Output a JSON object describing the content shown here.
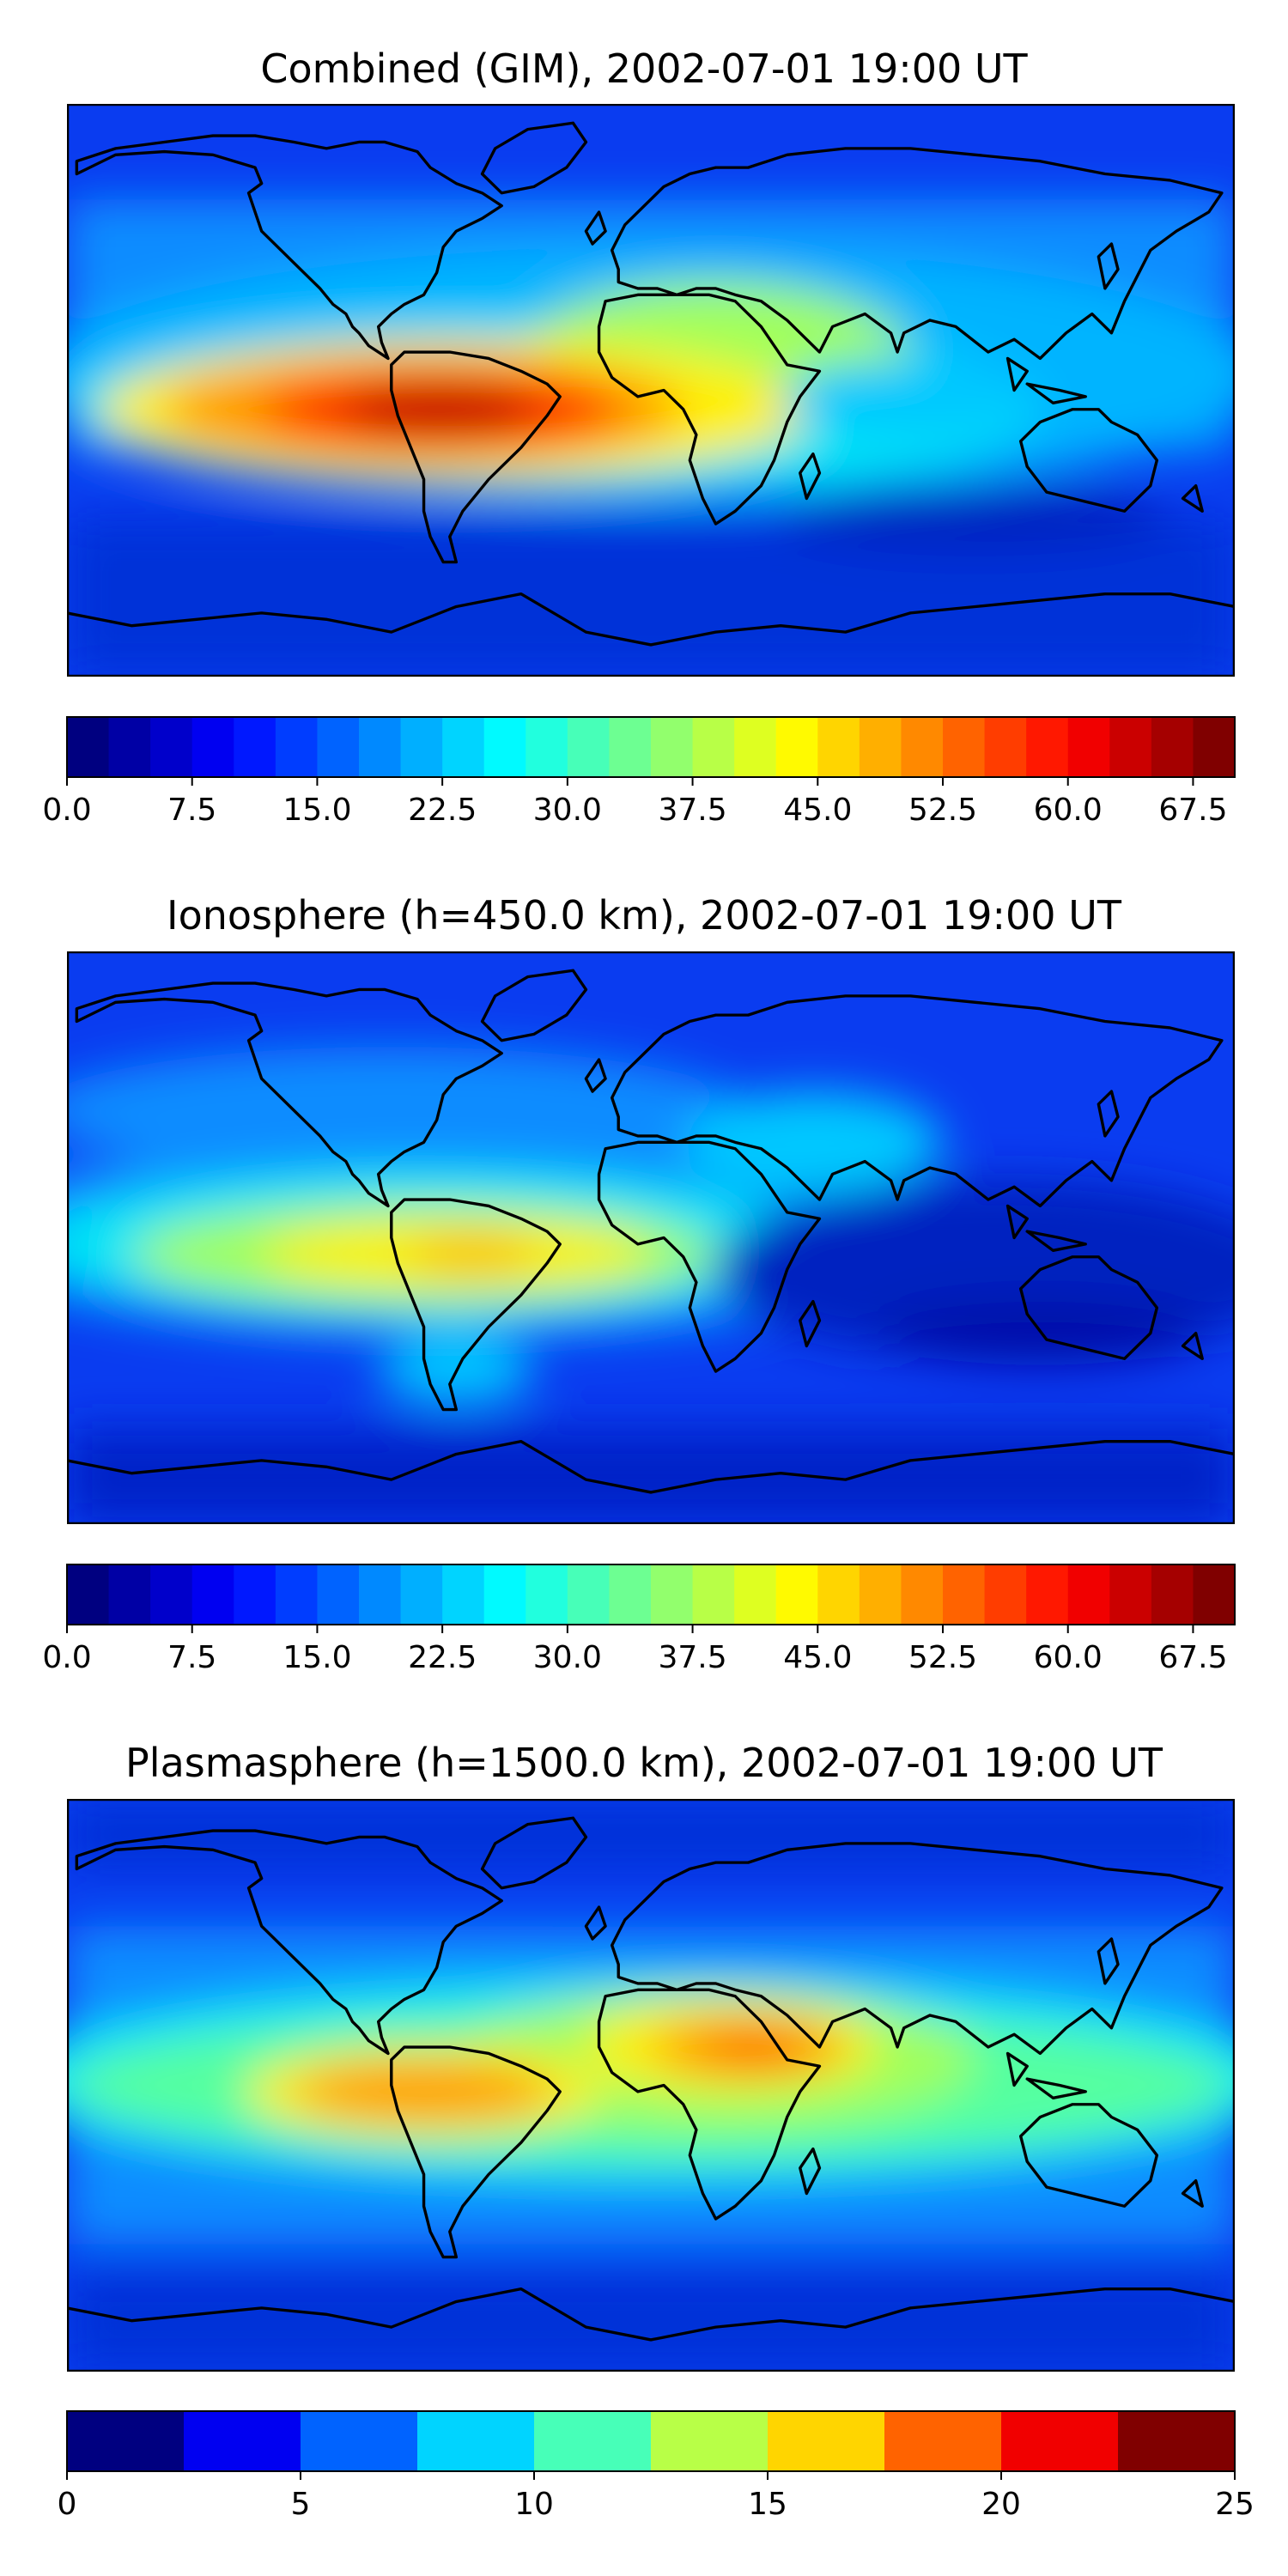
{
  "figure": {
    "panels": [
      {
        "title": "Combined (GIM), 2002-07-01 19:00 UT",
        "colorbar": {
          "levels": [
            0,
            2.5,
            5,
            7.5,
            10,
            12.5,
            15,
            17.5,
            20,
            22.5,
            25,
            27.5,
            30,
            32.5,
            35,
            37.5,
            40,
            42.5,
            45,
            47.5,
            50,
            52.5,
            55,
            57.5,
            60,
            62.5,
            65,
            67.5,
            70
          ],
          "ticks": [
            "0.0",
            "7.5",
            "15.0",
            "22.5",
            "30.0",
            "37.5",
            "45.0",
            "52.5",
            "60.0",
            "67.5"
          ],
          "tick_values": [
            0,
            7.5,
            15,
            22.5,
            30,
            37.5,
            45,
            52.5,
            60,
            67.5
          ]
        }
      },
      {
        "title": "Ionosphere  (h=450.0 km), 2002-07-01 19:00 UT",
        "colorbar": {
          "levels": [
            0,
            2.5,
            5,
            7.5,
            10,
            12.5,
            15,
            17.5,
            20,
            22.5,
            25,
            27.5,
            30,
            32.5,
            35,
            37.5,
            40,
            42.5,
            45,
            47.5,
            50,
            52.5,
            55,
            57.5,
            60,
            62.5,
            65,
            67.5,
            70
          ],
          "ticks": [
            "0.0",
            "7.5",
            "15.0",
            "22.5",
            "30.0",
            "37.5",
            "45.0",
            "52.5",
            "60.0",
            "67.5"
          ],
          "tick_values": [
            0,
            7.5,
            15,
            22.5,
            30,
            37.5,
            45,
            52.5,
            60,
            67.5
          ]
        }
      },
      {
        "title": "Plasmasphere (h=1500.0 km), 2002-07-01 19:00 UT",
        "colorbar": {
          "levels": [
            0,
            2.5,
            5,
            7.5,
            10,
            12.5,
            15,
            17.5,
            20,
            22.5,
            25
          ],
          "ticks": [
            "0",
            "5",
            "10",
            "15",
            "20",
            "25"
          ],
          "tick_values": [
            0,
            5,
            10,
            15,
            20,
            25
          ]
        }
      }
    ]
  },
  "chart_data": [
    {
      "type": "heatmap",
      "title": "Combined (GIM), 2002-07-01 19:00 UT",
      "colormap": "jet",
      "value_range": [
        0,
        70
      ],
      "contour_step": 2.5,
      "max_region": "South America / tropical Atlantic, approx 67.5",
      "low_region": "high latitudes, approx 2.5-10"
    },
    {
      "type": "heatmap",
      "title": "Ionosphere  (h=450.0 km), 2002-07-01 19:00 UT",
      "colormap": "jet",
      "value_range": [
        0,
        70
      ],
      "contour_step": 2.5,
      "max_region": "South America, approx 45-50",
      "low_region": "Indian Ocean / Australia and polar regions, approx 2.5-7.5"
    },
    {
      "type": "heatmap",
      "title": "Plasmasphere (h=1500.0 km), 2002-07-01 19:00 UT",
      "colormap": "jet",
      "value_range": [
        0,
        25
      ],
      "contour_step": 2.5,
      "max_region": "Northeast Africa, approx 20-22.5",
      "low_region": "high latitudes, approx 0-5"
    }
  ]
}
